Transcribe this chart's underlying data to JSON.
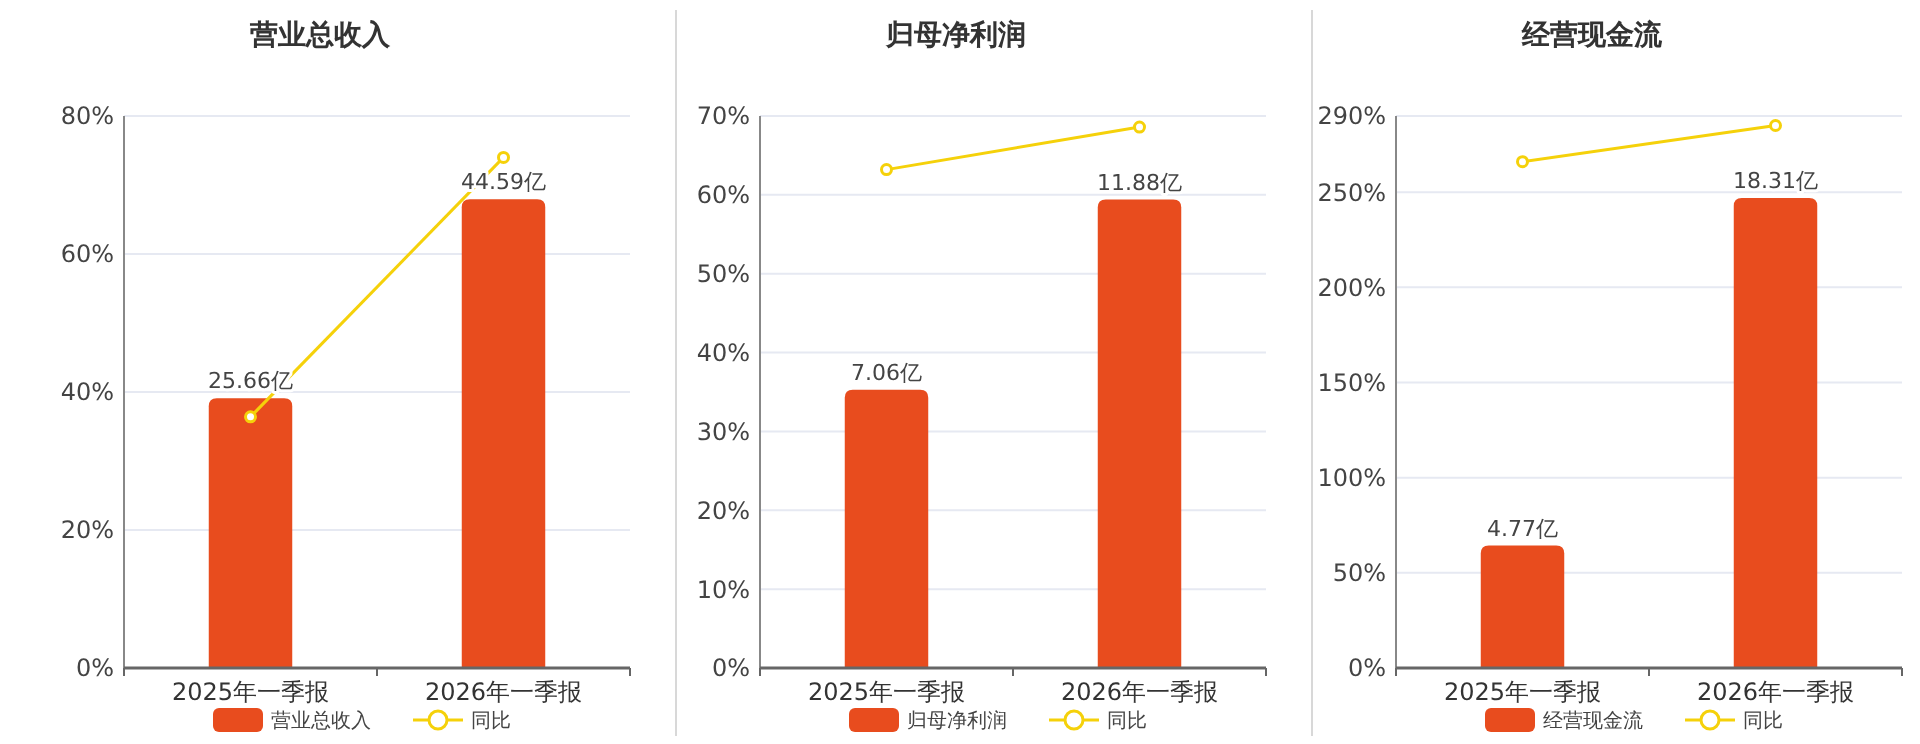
{
  "chart_data": [
    {
      "type": "bar",
      "title": "营业总收入",
      "categories": [
        "2025年一季报",
        "2026年一季报"
      ],
      "series": [
        {
          "name": "营业总收入",
          "color": "#e84c1e",
          "values": [
            25.66,
            44.59
          ],
          "axis": "y2",
          "value_labels": [
            "25.66亿",
            "44.59亿"
          ]
        },
        {
          "name": "同比",
          "type": "line",
          "color": "#f5d10a",
          "values": [
            36.4,
            74.0
          ],
          "marker": "circle"
        }
      ],
      "ylim": [
        0,
        80
      ],
      "yticks": [
        {
          "value": 0,
          "label": "0%"
        },
        {
          "value": 20,
          "label": "20%"
        },
        {
          "value": 40,
          "label": "40%"
        },
        {
          "value": 60,
          "label": "60%"
        },
        {
          "value": 80,
          "label": "80%"
        }
      ],
      "y2lim": [
        0,
        52.5
      ],
      "grid": "y",
      "legend": "bottom"
    },
    {
      "type": "bar",
      "title": "归母净利润",
      "categories": [
        "2025年一季报",
        "2026年一季报"
      ],
      "series": [
        {
          "name": "归母净利润",
          "color": "#e84c1e",
          "values": [
            7.06,
            11.88
          ],
          "axis": "y2",
          "value_labels": [
            "7.06亿",
            "11.88亿"
          ]
        },
        {
          "name": "同比",
          "type": "line",
          "color": "#f5d10a",
          "values": [
            63.2,
            68.6
          ],
          "marker": "circle"
        }
      ],
      "ylim": [
        0,
        70
      ],
      "yticks": [
        {
          "value": 0,
          "label": "0%"
        },
        {
          "value": 10,
          "label": "10%"
        },
        {
          "value": 20,
          "label": "20%"
        },
        {
          "value": 30,
          "label": "30%"
        },
        {
          "value": 40,
          "label": "40%"
        },
        {
          "value": 50,
          "label": "50%"
        },
        {
          "value": 60,
          "label": "60%"
        },
        {
          "value": 70,
          "label": "70%"
        }
      ],
      "y2lim": [
        0,
        14
      ],
      "grid": "y",
      "legend": "bottom"
    },
    {
      "type": "bar",
      "title": "经营现金流",
      "categories": [
        "2025年一季报",
        "2026年一季报"
      ],
      "series": [
        {
          "name": "经营现金流",
          "color": "#e84c1e",
          "values": [
            4.77,
            18.31
          ],
          "axis": "y2",
          "value_labels": [
            "4.77亿",
            "18.31亿"
          ]
        },
        {
          "name": "同比",
          "type": "line",
          "color": "#f5d10a",
          "values": [
            266,
            285
          ],
          "marker": "circle"
        }
      ],
      "ylim": [
        0,
        290
      ],
      "yticks": [
        {
          "value": 0,
          "label": "0%"
        },
        {
          "value": 50,
          "label": "50%"
        },
        {
          "value": 100,
          "label": "100%"
        },
        {
          "value": 150,
          "label": "150%"
        },
        {
          "value": 200,
          "label": "200%"
        },
        {
          "value": 250,
          "label": "250%"
        },
        {
          "value": 290,
          "label": "290%"
        }
      ],
      "y2lim": [
        0,
        21.5
      ],
      "grid": "y",
      "legend": "bottom"
    }
  ]
}
